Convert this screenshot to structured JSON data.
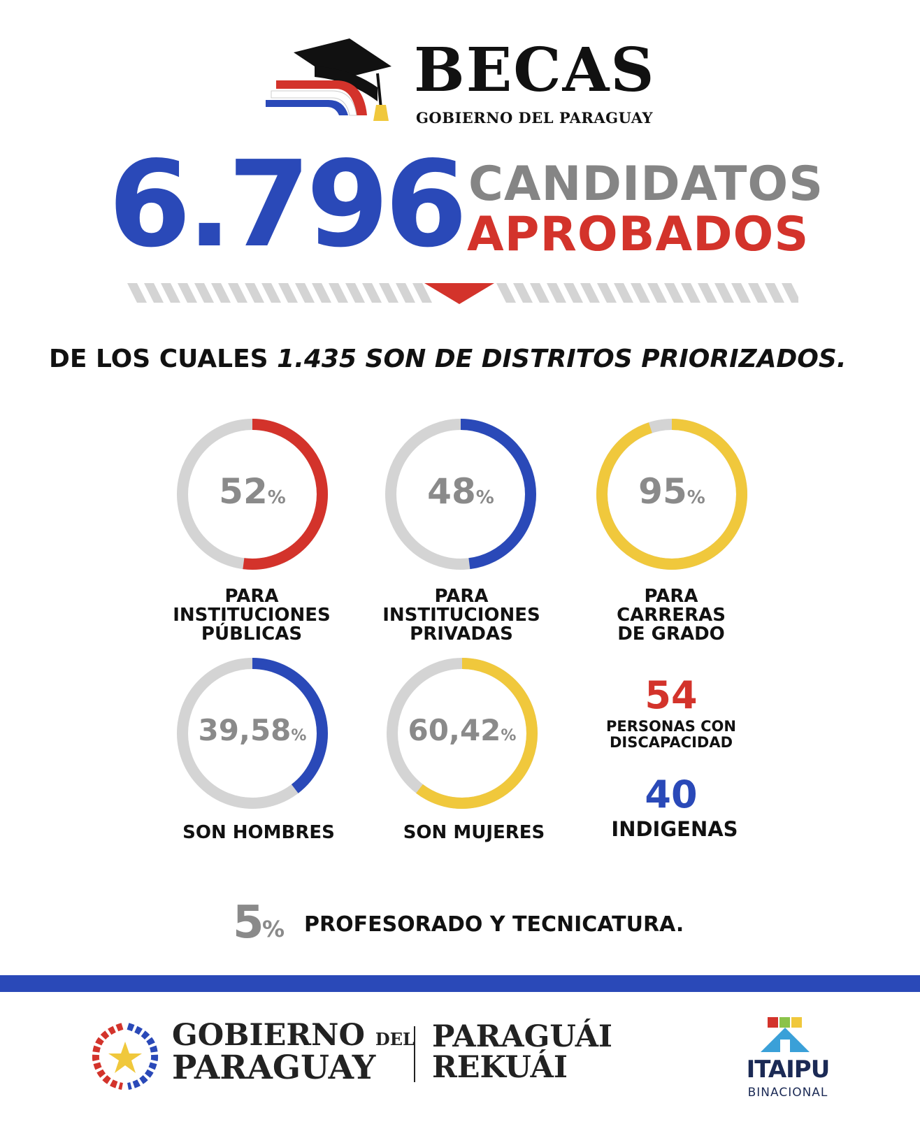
{
  "header": {
    "logo_title": "BECAS",
    "logo_subtitle": "GOBIERNO DEL PARAGUAY"
  },
  "headline": {
    "number": "6.796",
    "line1": "CANDIDATOS",
    "line2": "APROBADOS"
  },
  "priority": {
    "prefix": "DE LOS CUALES ",
    "emphasis": "1.435 SON DE DISTRITOS PRIORIZADOS."
  },
  "colors": {
    "blue": "#2a49b8",
    "red": "#d3332b",
    "yellow": "#f0c83c",
    "gray": "#d4d4d4"
  },
  "stats": [
    {
      "value": "52",
      "sign": "%",
      "fraction": 0.52,
      "color": "red",
      "caption": [
        "PARA",
        "INSTITUCIONES",
        "PÚBLICAS"
      ]
    },
    {
      "value": "48",
      "sign": "%",
      "fraction": 0.48,
      "color": "blue",
      "caption": [
        "PARA",
        "INSTITUCIONES",
        "PRIVADAS"
      ]
    },
    {
      "value": "95",
      "sign": "%",
      "fraction": 0.95,
      "color": "yellow",
      "caption": [
        "PARA",
        "CARRERAS",
        "DE GRADO"
      ]
    },
    {
      "value": "39,58",
      "sign": "%",
      "fraction": 0.3958,
      "color": "blue",
      "caption": [
        "SON HOMBRES"
      ]
    },
    {
      "value": "60,42",
      "sign": "%",
      "fraction": 0.6042,
      "color": "yellow",
      "caption": [
        "SON MUJERES"
      ]
    }
  ],
  "disabilities": {
    "number": "54",
    "label": [
      "PERSONAS CON",
      "DISCAPACIDAD"
    ]
  },
  "indigenous": {
    "number": "40",
    "label": "INDIGENAS"
  },
  "teaching": {
    "value": "5",
    "sign": "%",
    "label": "PROFESORADO Y TECNICATURA."
  },
  "footer": {
    "gob_line1": "GOBIERNO",
    "gob_del": "DEL",
    "gob_line2": "PARAGUAY",
    "par_line1": "PARAGUÁI",
    "par_line2": "REKUÁI",
    "itaipu_name": "ITAIPU",
    "itaipu_sub": "BINACIONAL"
  }
}
